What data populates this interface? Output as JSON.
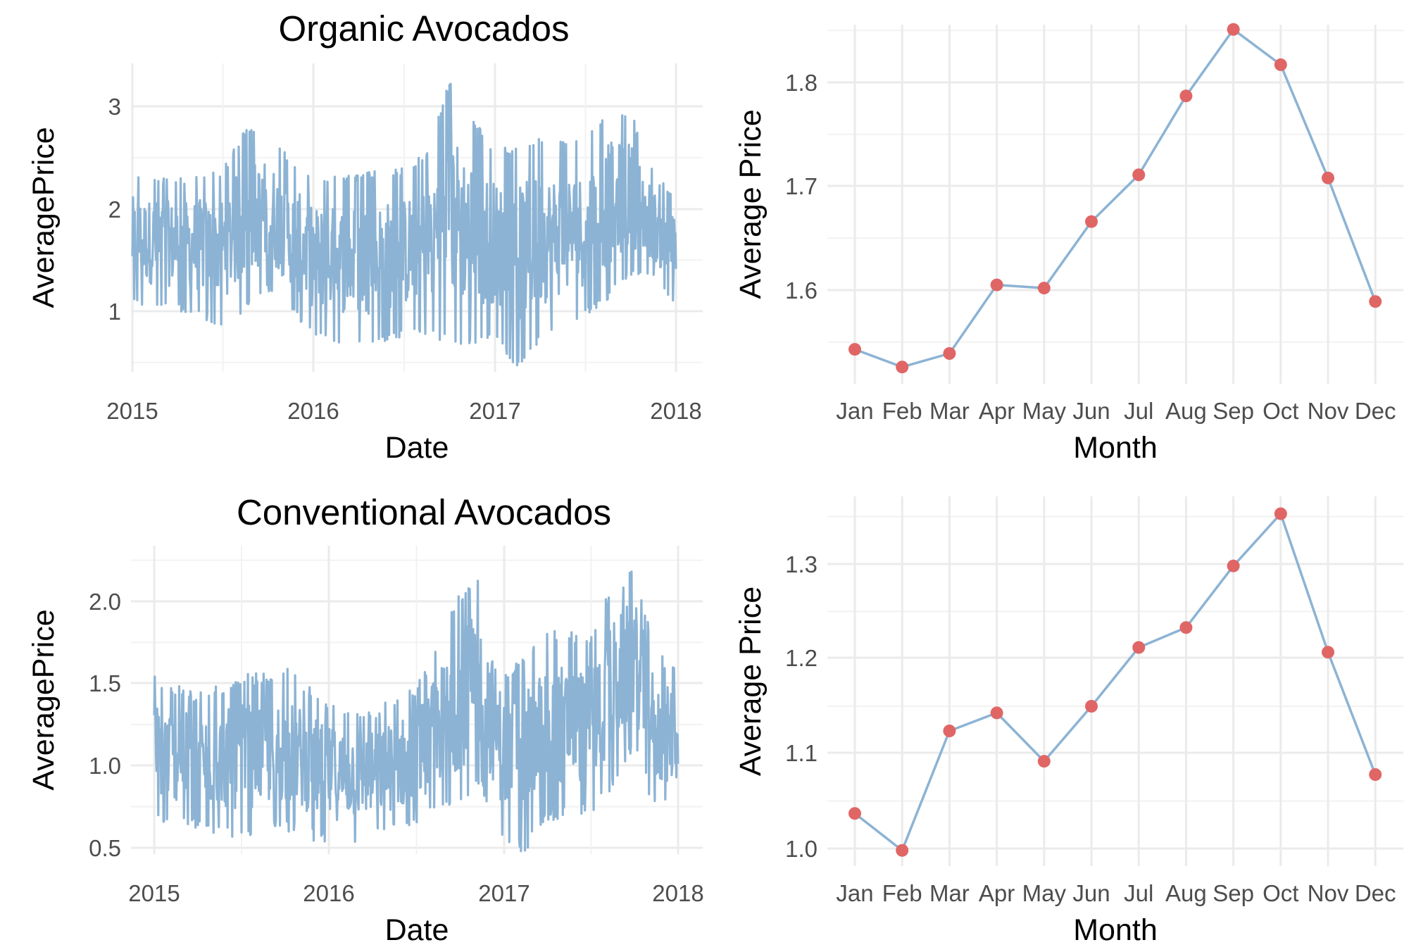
{
  "colors": {
    "line": "#8CB3D4",
    "point": "#E06666",
    "grid": "#ebebeb",
    "tick_text": "#4d4d4d"
  },
  "chart_data": [
    {
      "type": "line",
      "title": "Organic Avocados",
      "xlabel": "Date",
      "ylabel": "AveragePrice",
      "xlim": [
        2015.0,
        2018.0
      ],
      "ylim": [
        0.45,
        3.25
      ],
      "x_ticks": [
        "2015",
        "2016",
        "2017",
        "2018"
      ],
      "y_ticks": [
        "1",
        "2",
        "3"
      ],
      "grid": true,
      "series": [
        {
          "x": [
            2015.0,
            2015.25,
            2015.5,
            2015.62,
            2015.75,
            2015.87,
            2016.0,
            2016.25,
            2016.5,
            2016.62,
            2016.75,
            2016.87,
            2017.0,
            2017.12,
            2017.25,
            2017.5,
            2017.62,
            2017.75,
            2017.87,
            2018.0
          ],
          "max": [
            2.35,
            2.3,
            2.4,
            2.78,
            2.75,
            2.5,
            2.3,
            2.35,
            2.4,
            2.55,
            3.25,
            2.9,
            2.6,
            2.6,
            2.7,
            2.65,
            3.0,
            2.95,
            2.4,
            2.1
          ],
          "min": [
            1.05,
            1.0,
            0.85,
            1.0,
            1.2,
            1.0,
            0.75,
            0.65,
            0.75,
            0.75,
            0.7,
            0.65,
            0.75,
            0.45,
            0.7,
            0.95,
            1.1,
            1.35,
            1.3,
            1.05
          ]
        }
      ]
    },
    {
      "type": "line",
      "xlabel": "Month",
      "ylabel": "Average Price",
      "ylim": [
        1.51,
        1.87
      ],
      "y_ticks": [
        "1.6",
        "1.7",
        "1.8"
      ],
      "grid": true,
      "categories": [
        "Jan",
        "Feb",
        "Mar",
        "Apr",
        "May",
        "Jun",
        "Jul",
        "Aug",
        "Sep",
        "Oct",
        "Nov",
        "Dec"
      ],
      "values": [
        1.543,
        1.526,
        1.539,
        1.605,
        1.602,
        1.666,
        1.711,
        1.787,
        1.851,
        1.817,
        1.708,
        1.589
      ]
    },
    {
      "type": "line",
      "title": "Conventional Avocados",
      "xlabel": "Date",
      "ylabel": "AveragePrice",
      "xlim": [
        2015.0,
        2018.0
      ],
      "ylim": [
        0.46,
        2.23
      ],
      "x_ticks": [
        "2015",
        "2016",
        "2017",
        "2018"
      ],
      "y_ticks": [
        "0.5",
        "1.0",
        "1.5",
        "2.0"
      ],
      "grid": true,
      "series": [
        {
          "x": [
            2015.0,
            2015.25,
            2015.5,
            2015.75,
            2016.0,
            2016.25,
            2016.5,
            2016.62,
            2016.75,
            2016.87,
            2017.0,
            2017.12,
            2017.25,
            2017.5,
            2017.62,
            2017.75,
            2017.87,
            2018.0
          ],
          "max": [
            1.55,
            1.45,
            1.55,
            1.6,
            1.4,
            1.35,
            1.5,
            1.75,
            2.05,
            2.2,
            1.6,
            1.65,
            1.85,
            1.8,
            2.1,
            2.22,
            1.7,
            1.6
          ],
          "min": [
            0.65,
            0.6,
            0.55,
            0.6,
            0.5,
            0.55,
            0.6,
            0.7,
            0.75,
            0.85,
            0.55,
            0.46,
            0.65,
            0.7,
            0.85,
            1.1,
            0.7,
            0.75
          ]
        }
      ]
    },
    {
      "type": "line",
      "xlabel": "Month",
      "ylabel": "Average Price",
      "ylim": [
        0.99,
        1.36
      ],
      "y_ticks": [
        "1.0",
        "1.1",
        "1.2",
        "1.3"
      ],
      "grid": true,
      "categories": [
        "Jan",
        "Feb",
        "Mar",
        "Apr",
        "May",
        "Jun",
        "Jul",
        "Aug",
        "Sep",
        "Oct",
        "Nov",
        "Dec"
      ],
      "values": [
        1.037,
        0.998,
        1.124,
        1.143,
        1.092,
        1.15,
        1.212,
        1.233,
        1.298,
        1.353,
        1.207,
        1.078
      ]
    }
  ]
}
